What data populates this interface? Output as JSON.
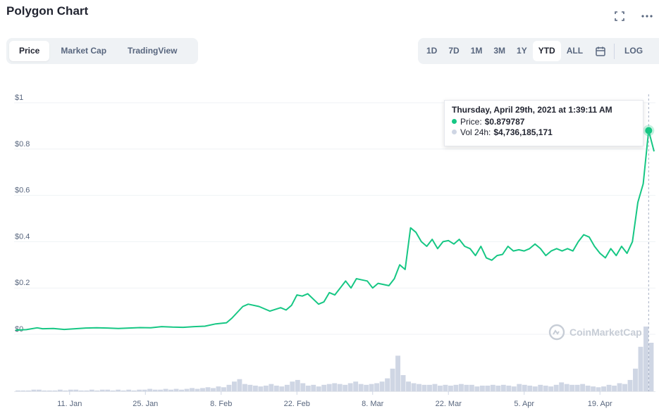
{
  "title": "Polygon Chart",
  "icons": {
    "expand": "expand-icon",
    "more": "more-icon",
    "calendar": "calendar-icon",
    "logo": "coinmarketcap-logo-icon"
  },
  "tabs": [
    {
      "label": "Price",
      "active": true
    },
    {
      "label": "Market Cap",
      "active": false
    },
    {
      "label": "TradingView",
      "active": false
    }
  ],
  "ranges": [
    {
      "label": "1D",
      "active": false
    },
    {
      "label": "7D",
      "active": false
    },
    {
      "label": "1M",
      "active": false
    },
    {
      "label": "3M",
      "active": false
    },
    {
      "label": "1Y",
      "active": false
    },
    {
      "label": "YTD",
      "active": true
    },
    {
      "label": "ALL",
      "active": false
    }
  ],
  "log_label": "LOG",
  "tooltip": {
    "date": "Thursday, April 29th, 2021 at 1:39:11 AM",
    "price_label": "Price:",
    "price_value": "$0.879787",
    "vol_label": "Vol 24h:",
    "vol_value": "$4,736,185,171"
  },
  "watermark": "CoinMarketCap",
  "colors": {
    "line": "#16c784",
    "volume": "#cfd6e4",
    "grid": "#eff2f5",
    "vol_dot": "#cfd6e4"
  },
  "chart_data": {
    "type": "line",
    "y_ticks": [
      "$1",
      "$0.8",
      "$0.6",
      "$0.4",
      "$0.2",
      "$0"
    ],
    "y_tick_values": [
      1,
      0.8,
      0.6,
      0.4,
      0.2,
      0
    ],
    "ylim": [
      0,
      1
    ],
    "x_ticks": [
      "11. Jan",
      "25. Jan",
      "8. Feb",
      "22. Feb",
      "8. Mar",
      "22. Mar",
      "5. Apr",
      "19. Apr"
    ],
    "x_tick_days": [
      11,
      25,
      39,
      53,
      67,
      81,
      95,
      109
    ],
    "xlim_days": [
      1,
      119
    ],
    "series": [
      {
        "values_by_day": [
          [
            1,
            0.018
          ],
          [
            3,
            0.02
          ],
          [
            5,
            0.028
          ],
          [
            6,
            0.024
          ],
          [
            8,
            0.025
          ],
          [
            10,
            0.021
          ],
          [
            12,
            0.024
          ],
          [
            14,
            0.027
          ],
          [
            16,
            0.028
          ],
          [
            18,
            0.027
          ],
          [
            20,
            0.025
          ],
          [
            22,
            0.027
          ],
          [
            24,
            0.029
          ],
          [
            26,
            0.028
          ],
          [
            28,
            0.033
          ],
          [
            30,
            0.031
          ],
          [
            32,
            0.03
          ],
          [
            34,
            0.033
          ],
          [
            36,
            0.035
          ],
          [
            38,
            0.045
          ],
          [
            40,
            0.05
          ],
          [
            41,
            0.07
          ],
          [
            43,
            0.12
          ],
          [
            44,
            0.13
          ],
          [
            46,
            0.12
          ],
          [
            48,
            0.1
          ],
          [
            50,
            0.115
          ],
          [
            51,
            0.105
          ],
          [
            52,
            0.125
          ],
          [
            53,
            0.17
          ],
          [
            54,
            0.165
          ],
          [
            55,
            0.175
          ],
          [
            57,
            0.13
          ],
          [
            58,
            0.14
          ],
          [
            59,
            0.18
          ],
          [
            60,
            0.17
          ],
          [
            61,
            0.2
          ],
          [
            62,
            0.23
          ],
          [
            63,
            0.2
          ],
          [
            64,
            0.24
          ],
          [
            65,
            0.235
          ],
          [
            66,
            0.23
          ],
          [
            67,
            0.2
          ],
          [
            68,
            0.22
          ],
          [
            70,
            0.21
          ],
          [
            71,
            0.24
          ],
          [
            72,
            0.3
          ],
          [
            73,
            0.28
          ],
          [
            74,
            0.46
          ],
          [
            75,
            0.44
          ],
          [
            76,
            0.4
          ],
          [
            77,
            0.38
          ],
          [
            78,
            0.41
          ],
          [
            79,
            0.37
          ],
          [
            80,
            0.4
          ],
          [
            81,
            0.405
          ],
          [
            82,
            0.39
          ],
          [
            83,
            0.41
          ],
          [
            84,
            0.38
          ],
          [
            85,
            0.37
          ],
          [
            86,
            0.34
          ],
          [
            87,
            0.38
          ],
          [
            88,
            0.33
          ],
          [
            89,
            0.32
          ],
          [
            90,
            0.34
          ],
          [
            91,
            0.345
          ],
          [
            92,
            0.38
          ],
          [
            93,
            0.36
          ],
          [
            94,
            0.365
          ],
          [
            95,
            0.36
          ],
          [
            96,
            0.37
          ],
          [
            97,
            0.39
          ],
          [
            98,
            0.37
          ],
          [
            99,
            0.34
          ],
          [
            100,
            0.36
          ],
          [
            101,
            0.37
          ],
          [
            102,
            0.36
          ],
          [
            103,
            0.37
          ],
          [
            104,
            0.36
          ],
          [
            105,
            0.4
          ],
          [
            106,
            0.43
          ],
          [
            107,
            0.42
          ],
          [
            108,
            0.38
          ],
          [
            109,
            0.35
          ],
          [
            110,
            0.33
          ],
          [
            111,
            0.37
          ],
          [
            112,
            0.34
          ],
          [
            113,
            0.38
          ],
          [
            114,
            0.35
          ],
          [
            115,
            0.4
          ],
          [
            116,
            0.57
          ],
          [
            117,
            0.65
          ],
          [
            118,
            0.88
          ],
          [
            119,
            0.79
          ]
        ]
      }
    ],
    "volume_relative": [
      1,
      1,
      1,
      2,
      2,
      1,
      1,
      1,
      2,
      1,
      2,
      2,
      1,
      1,
      2,
      1,
      2,
      2,
      1,
      2,
      1,
      2,
      1,
      2,
      2,
      3,
      2,
      2,
      3,
      2,
      3,
      2,
      3,
      4,
      3,
      4,
      5,
      4,
      6,
      5,
      8,
      12,
      15,
      9,
      8,
      7,
      6,
      7,
      9,
      7,
      6,
      8,
      12,
      14,
      10,
      7,
      8,
      6,
      8,
      9,
      10,
      9,
      8,
      10,
      12,
      9,
      8,
      9,
      10,
      12,
      16,
      28,
      44,
      20,
      12,
      10,
      9,
      8,
      8,
      9,
      7,
      8,
      7,
      8,
      9,
      8,
      8,
      6,
      7,
      7,
      8,
      7,
      8,
      7,
      6,
      9,
      8,
      7,
      6,
      8,
      7,
      6,
      8,
      11,
      9,
      8,
      8,
      9,
      7,
      6,
      5,
      6,
      8,
      7,
      10,
      9,
      14,
      28,
      55,
      80,
      60
    ]
  }
}
